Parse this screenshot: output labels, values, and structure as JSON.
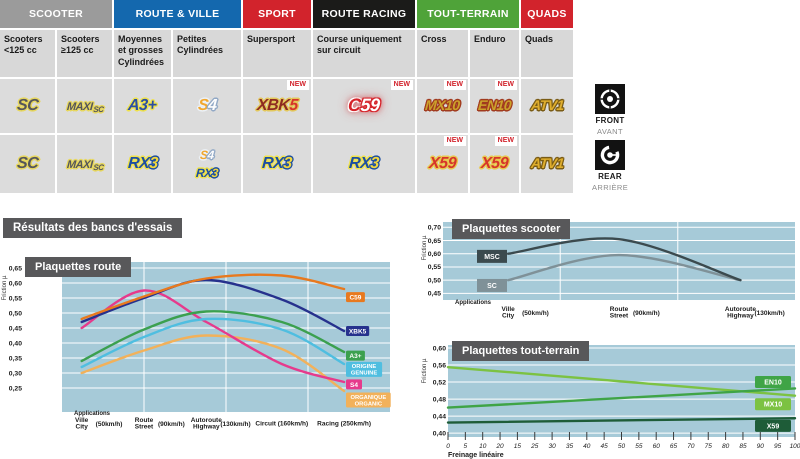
{
  "table": {
    "new_label": "NEW",
    "groups": [
      {
        "label": "SCOOTER",
        "color": "#9B9B9B"
      },
      {
        "label": "ROUTE & VILLE",
        "color": "#1468AE"
      },
      {
        "label": "SPORT",
        "color": "#D2232C"
      },
      {
        "label": "ROUTE RACING",
        "color": "#1B1B19"
      },
      {
        "label": "TOUT-TERRAIN",
        "color": "#4FA339"
      },
      {
        "label": "QUADS",
        "color": "#D2232C"
      }
    ],
    "subheaders": [
      "Scooters <125 cc",
      "Scooters ≥125 cc",
      "Moyennes et grosses Cylindrées",
      "Petites Cylindrées",
      "Supersport",
      "Course uniquement sur circuit",
      "Cross",
      "Enduro",
      "Quads"
    ],
    "rows": [
      {
        "side": "front",
        "cells": [
          {
            "new": false,
            "logos": [
              [
                {
                  "t": "SC",
                  "cls": "seg-sc"
                }
              ]
            ]
          },
          {
            "new": false,
            "logos": [
              [
                {
                  "t": "MAXI",
                  "cls": "seg-sc sz-maxi"
                },
                {
                  "t": "SC",
                  "cls": "seg-sc sz-maxisub"
                }
              ]
            ]
          },
          {
            "new": false,
            "logos": [
              [
                {
                  "t": "A3+",
                  "cls": "seg-a3"
                }
              ]
            ]
          },
          {
            "new": false,
            "logos": [
              [
                {
                  "t": "S",
                  "cls": "seg-s4s"
                },
                {
                  "t": "4",
                  "cls": "seg-s44"
                }
              ]
            ]
          },
          {
            "new": true,
            "logos": [
              [
                {
                  "t": "XBK",
                  "cls": "seg-xbk"
                },
                {
                  "t": "5",
                  "cls": "seg-xbk5"
                }
              ]
            ]
          },
          {
            "new": true,
            "logos": [
              [
                {
                  "t": "C",
                  "cls": "seg-c59c"
                },
                {
                  "t": "59",
                  "cls": "seg-c5959"
                }
              ]
            ]
          },
          {
            "new": true,
            "logos": [
              [
                {
                  "t": "MX10",
                  "cls": "seg-off"
                }
              ]
            ]
          },
          {
            "new": true,
            "logos": [
              [
                {
                  "t": "EN10",
                  "cls": "seg-off"
                }
              ]
            ]
          },
          {
            "new": false,
            "logos": [
              [
                {
                  "t": "ATV1",
                  "cls": "seg-atv"
                }
              ]
            ]
          }
        ]
      },
      {
        "side": "rear",
        "cells": [
          {
            "new": false,
            "logos": [
              [
                {
                  "t": "SC",
                  "cls": "seg-sc"
                }
              ]
            ]
          },
          {
            "new": false,
            "logos": [
              [
                {
                  "t": "MAXI",
                  "cls": "seg-sc sz-maxi"
                },
                {
                  "t": "SC",
                  "cls": "seg-sc sz-maxisub"
                }
              ]
            ]
          },
          {
            "new": false,
            "logos": [
              [
                {
                  "t": "RX",
                  "cls": "seg-rx"
                },
                {
                  "t": "3",
                  "cls": "seg-rx3"
                }
              ]
            ]
          },
          {
            "new": false,
            "logos": [
              [
                {
                  "t": "S",
                  "cls": "seg-s4s sz-sm"
                },
                {
                  "t": "4",
                  "cls": "seg-s44 sz-sm"
                }
              ],
              [
                {
                  "t": "RX",
                  "cls": "seg-rx sz-sm"
                },
                {
                  "t": "3",
                  "cls": "seg-rx3 sz-sm"
                }
              ]
            ]
          },
          {
            "new": false,
            "logos": [
              [
                {
                  "t": "RX",
                  "cls": "seg-rx"
                },
                {
                  "t": "3",
                  "cls": "seg-rx3"
                }
              ]
            ]
          },
          {
            "new": false,
            "logos": [
              [
                {
                  "t": "RX",
                  "cls": "seg-rx"
                },
                {
                  "t": "3",
                  "cls": "seg-rx3"
                }
              ]
            ]
          },
          {
            "new": true,
            "logos": [
              [
                {
                  "t": "X59",
                  "cls": "seg-x59"
                }
              ]
            ]
          },
          {
            "new": true,
            "logos": [
              [
                {
                  "t": "X59",
                  "cls": "seg-x59"
                }
              ]
            ]
          },
          {
            "new": false,
            "logos": [
              [
                {
                  "t": "ATV1",
                  "cls": "seg-atv"
                }
              ]
            ]
          }
        ]
      }
    ]
  },
  "position_labels": {
    "front": {
      "en": "FRONT",
      "fr": "AVANT"
    },
    "rear": {
      "en": "REAR",
      "fr": "ARRIÈRE"
    }
  },
  "section_title": "Résultats des bancs d'essais",
  "chart_data": [
    {
      "id": "route",
      "type": "line",
      "title": "Plaquettes route",
      "ylabel": "Friction µ",
      "applications_label": "Applications",
      "grid": true,
      "legend_position": "right",
      "ylim": [
        0.25,
        0.65
      ],
      "yticks": [
        0.65,
        0.6,
        0.55,
        0.5,
        0.45,
        0.4,
        0.35,
        0.3,
        0.25
      ],
      "categories": [
        {
          "line1": "Ville",
          "line2": "City",
          "suffix": "(50km/h)"
        },
        {
          "line1": "Route",
          "line2": "Street",
          "suffix": "(90km/h)"
        },
        {
          "line1": "Autoroute",
          "line2": "Highway",
          "suffix": "(130km/h)"
        },
        {
          "line1": "Circuit",
          "suffix": "(160km/h)"
        },
        {
          "line1": "Racing",
          "suffix": "(250km/h)"
        }
      ],
      "series": [
        {
          "name": "C59",
          "label_lines": [
            "C59"
          ],
          "color": "#E8791E",
          "values": [
            0.48,
            0.555,
            0.615,
            0.625,
            0.58
          ],
          "legend_v": 0.553
        },
        {
          "name": "XBK5",
          "label_lines": [
            "XBK5"
          ],
          "color": "#26318D",
          "values": [
            0.47,
            0.55,
            0.61,
            0.545,
            0.44
          ],
          "legend_v": 0.44
        },
        {
          "name": "A3+",
          "label_lines": [
            "A3+"
          ],
          "color": "#3BA04F",
          "values": [
            0.34,
            0.445,
            0.505,
            0.47,
            0.37
          ],
          "legend_v": 0.358
        },
        {
          "name": "ORIGINE GENUINE",
          "label_lines": [
            "ORIGINE",
            "GENUINE"
          ],
          "color": "#4FBEE0",
          "values": [
            0.32,
            0.42,
            0.48,
            0.445,
            0.33
          ],
          "legend_v": 0.312
        },
        {
          "name": "S4",
          "label_lines": [
            "S4"
          ],
          "color": "#E63A8C",
          "values": [
            0.45,
            0.575,
            0.47,
            0.33,
            0.27
          ],
          "legend_v": 0.262
        },
        {
          "name": "ORGANIQUE ORGANIC",
          "label_lines": [
            "ORGANIQUE",
            "ORGANIC"
          ],
          "color": "#F2B15A",
          "values": [
            0.3,
            0.375,
            0.425,
            0.38,
            0.24
          ],
          "legend_v": 0.21
        }
      ]
    },
    {
      "id": "scooter",
      "type": "line",
      "title": "Plaquettes scooter",
      "ylabel": "Friction µ",
      "applications_label": "Applications",
      "grid": true,
      "legend_position": "left-boxes",
      "ylim": [
        0.45,
        0.7
      ],
      "yticks": [
        0.7,
        0.65,
        0.6,
        0.55,
        0.5,
        0.45
      ],
      "categories": [
        {
          "line1": "Ville",
          "line2": "City",
          "suffix": "(50km/h)"
        },
        {
          "line1": "Route",
          "line2": "Street",
          "suffix": "(90km/h)"
        },
        {
          "line1": "Autoroute",
          "line2": "Highway",
          "suffix": "(130km/h)"
        }
      ],
      "series": [
        {
          "name": "MSC",
          "label_lines": [
            "MSC"
          ],
          "color": "#3B4A4E",
          "values": [
            0.6,
            0.655,
            0.5
          ],
          "legend_v": 0.59
        },
        {
          "name": "SC",
          "label_lines": [
            "SC"
          ],
          "color": "#7F9198",
          "values": [
            0.5,
            0.595,
            0.5
          ],
          "legend_v": 0.48
        }
      ]
    },
    {
      "id": "tt",
      "type": "line",
      "title": "Plaquettes tout-terrain",
      "ylabel": "Friction µ",
      "xlabel": "Freinage linéaire",
      "grid": true,
      "legend_position": "right",
      "ylim": [
        0.4,
        0.6
      ],
      "xlim": [
        0,
        100
      ],
      "yticks": [
        0.6,
        0.56,
        0.52,
        0.48,
        0.44,
        0.4
      ],
      "xticks": [
        "0",
        "5",
        "10",
        "20",
        "15",
        "25",
        "30",
        "35",
        "40",
        "45",
        "50",
        "55",
        "60",
        "65",
        "70",
        "75",
        "80",
        "85",
        "90",
        "95",
        "100"
      ],
      "series": [
        {
          "name": "EN10",
          "label_lines": [
            "EN10"
          ],
          "color": "#3FA446",
          "values": [
            0.46,
            0.505
          ],
          "legend_v": 0.52
        },
        {
          "name": "MX10",
          "label_lines": [
            "MX10"
          ],
          "color": "#7CC242",
          "values": [
            0.555,
            0.488
          ],
          "legend_v": 0.468
        },
        {
          "name": "X59",
          "label_lines": [
            "X59"
          ],
          "color": "#1E5C38",
          "values": [
            0.425,
            0.435
          ],
          "legend_v": 0.417
        }
      ]
    }
  ]
}
